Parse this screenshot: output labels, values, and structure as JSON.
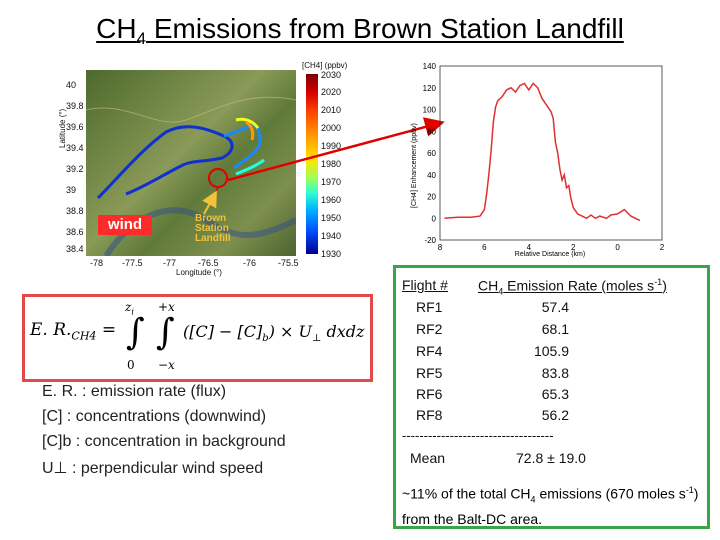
{
  "title": {
    "prefix": "CH",
    "sub": "4",
    "rest": " Emissions from Brown Station Landfill"
  },
  "map": {
    "colorbar_label": "[CH4] (ppbv)",
    "colorbar_ticks": [
      "2030",
      "2020",
      "2010",
      "2000",
      "1990",
      "1980",
      "1970",
      "1960",
      "1950",
      "1940",
      "1930"
    ],
    "y_ticks": [
      "40",
      "39.8",
      "39.6",
      "39.4",
      "39.2",
      "39",
      "38.8",
      "38.6",
      "38.4"
    ],
    "x_ticks": [
      "-78",
      "-77.5",
      "-77",
      "-76.5",
      "-76",
      "-75.5"
    ],
    "xlabel": "Longitude (°)",
    "ylabel": "Latitude (°)",
    "wind_label": "wind",
    "landfill_label": [
      "Brown",
      "Station",
      "Landfill"
    ]
  },
  "chart_data": {
    "type": "line",
    "title": "",
    "xlabel": "Relative Distance (km)",
    "ylabel": "[CH4] Enhancement (ppbv)",
    "xlim": [
      -8,
      2
    ],
    "ylim": [
      -20,
      140
    ],
    "x_ticks": [
      "8",
      "6",
      "4",
      "2",
      "0",
      "2"
    ],
    "y_ticks": [
      "140",
      "120",
      "100",
      "80",
      "60",
      "40",
      "20",
      "0",
      "-20"
    ],
    "grid": false,
    "color": "#e03030",
    "series": [
      {
        "values_x": [
          -7.8,
          -7.2,
          -6.6,
          -6.2,
          -6.0,
          -5.9,
          -5.8,
          -5.7,
          -5.6,
          -5.5,
          -5.4,
          -5.2,
          -5.0,
          -4.8,
          -4.6,
          -4.4,
          -4.2,
          -4.0,
          -3.8,
          -3.6,
          -3.4,
          -3.2,
          -3.0,
          -2.9,
          -2.8,
          -2.7,
          -2.6,
          -2.5,
          -2.4,
          -2.3,
          -2.2,
          -2.1,
          -2.0,
          -1.8,
          -1.6,
          -1.4,
          -1.2,
          -1.0,
          -0.8,
          -0.5,
          -0.3,
          0.0,
          0.3,
          0.6,
          0.8,
          1.0
        ],
        "values_y": [
          0,
          1,
          1,
          2,
          8,
          22,
          40,
          62,
          88,
          102,
          108,
          112,
          118,
          120,
          116,
          122,
          124,
          118,
          124,
          120,
          110,
          104,
          98,
          92,
          70,
          60,
          45,
          35,
          40,
          28,
          30,
          18,
          10,
          4,
          2,
          0,
          3,
          0,
          2,
          0,
          3,
          4,
          8,
          2,
          0,
          -2
        ]
      }
    ]
  },
  "formula": {
    "lhs": "E. R.",
    "lhs_sub": "CH4",
    "upper_z": "z",
    "upper_z_sub": "i",
    "upper_x": "+x",
    "lower_z": "0",
    "lower_x": "−x",
    "integrand_1": "([C] − [C]",
    "integrand_sub": "b",
    "integrand_2": ") × U",
    "integrand_perp": "⊥",
    "integrand_3": " dxdz"
  },
  "definitions": [
    "E. R. : emission rate (flux)",
    "[C] : concentrations (downwind)",
    "[C]b : concentration in background",
    "U⊥ : perpendicular wind speed"
  ],
  "table": {
    "flight_header": "Flight #",
    "rate_header_prefix": "CH",
    "rate_header_sub": "4",
    "rate_header_rest": " Emission Rate (moles s",
    "rate_header_sup": "-1",
    "rate_header_end": ")",
    "rows": [
      {
        "flight": "RF1",
        "rate": "57.4"
      },
      {
        "flight": "RF2",
        "rate": "68.1"
      },
      {
        "flight": "RF4",
        "rate": "105.9"
      },
      {
        "flight": "RF5",
        "rate": "83.8"
      },
      {
        "flight": "RF6",
        "rate": "65.3"
      },
      {
        "flight": "RF8",
        "rate": "56.2"
      }
    ],
    "separator": "-----------------------------------",
    "mean_label": "Mean",
    "mean_value": "72.8 ± 19.0"
  },
  "summary": {
    "part1": "~11% of the total CH",
    "sub": "4",
    "part2": " emissions (670 moles s",
    "sup": "-1",
    "part3": ") from the Balt-DC area."
  }
}
